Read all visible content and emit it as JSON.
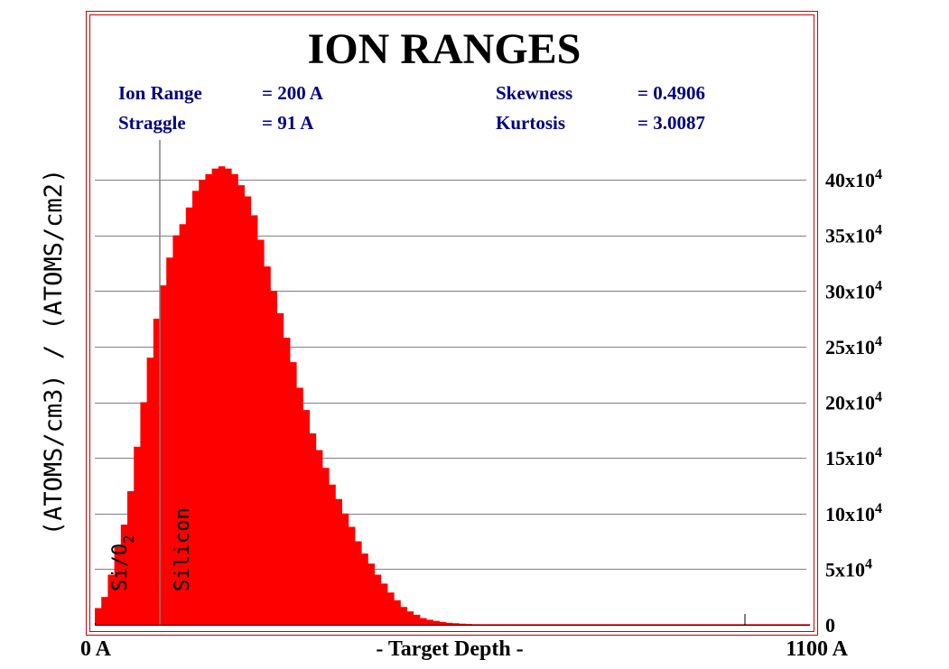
{
  "chart_data": {
    "type": "bar",
    "title": "ION RANGES",
    "stats": {
      "ion_range": {
        "label": "Ion Range",
        "value": "= 200 A"
      },
      "straggle": {
        "label": "Straggle",
        "value": "= 91 A"
      },
      "skewness": {
        "label": "Skewness",
        "value": "= 0.4906"
      },
      "kurtosis": {
        "label": "Kurtosis",
        "value": "= 3.0087"
      }
    },
    "xlabel": "- Target Depth -",
    "x_start_label": "0 A",
    "x_end_label": "1100 A",
    "x_unit": "A",
    "xlim": [
      0,
      1100
    ],
    "ylabel": "(ATOMS/cm3) / (ATOMS/cm2)",
    "ylim": [
      0,
      450000
    ],
    "y_ticks": [
      {
        "value": 0,
        "label": "0"
      },
      {
        "value": 50000,
        "mantissa": "5x10",
        "exp": "4"
      },
      {
        "value": 100000,
        "mantissa": "10x10",
        "exp": "4"
      },
      {
        "value": 150000,
        "mantissa": "15x10",
        "exp": "4"
      },
      {
        "value": 200000,
        "mantissa": "20x10",
        "exp": "4"
      },
      {
        "value": 250000,
        "mantissa": "25x10",
        "exp": "4"
      },
      {
        "value": 300000,
        "mantissa": "30x10",
        "exp": "4"
      },
      {
        "value": 350000,
        "mantissa": "35x10",
        "exp": "4"
      },
      {
        "value": 400000,
        "mantissa": "40x10",
        "exp": "4"
      }
    ],
    "grid": true,
    "layers": [
      {
        "label": "Si/O",
        "sub": "2",
        "from": 0,
        "to": 100
      },
      {
        "label": "Silicon",
        "from": 100,
        "to": 1100
      }
    ],
    "layer_boundary": 100,
    "series": [
      {
        "bin_width": 10,
        "x": [
          5,
          15,
          25,
          35,
          45,
          55,
          65,
          75,
          85,
          95,
          105,
          115,
          125,
          135,
          145,
          155,
          165,
          175,
          185,
          195,
          205,
          215,
          225,
          235,
          245,
          255,
          265,
          275,
          285,
          295,
          305,
          315,
          325,
          335,
          345,
          355,
          365,
          375,
          385,
          395,
          405,
          415,
          425,
          435,
          445,
          455,
          465,
          475,
          485,
          495,
          505,
          515,
          525,
          535,
          545,
          555,
          565,
          575,
          585,
          595,
          605,
          615,
          625,
          635,
          645,
          655,
          665,
          675,
          685,
          695,
          705,
          715,
          725,
          735,
          745,
          755,
          765,
          775,
          785,
          795,
          805,
          815,
          825,
          835,
          845,
          855,
          865,
          875,
          885,
          895,
          905,
          915,
          925,
          935,
          945,
          955,
          965,
          975,
          985,
          995,
          1005,
          1015,
          1025,
          1035,
          1045,
          1055,
          1065,
          1075,
          1085,
          1095
        ],
        "values": [
          15000,
          25000,
          45000,
          70000,
          90000,
          120000,
          160000,
          200000,
          240000,
          275000,
          305000,
          330000,
          350000,
          360000,
          375000,
          390000,
          400000,
          405000,
          410000,
          412000,
          410000,
          405000,
          395000,
          385000,
          368000,
          346000,
          322000,
          300000,
          280000,
          258000,
          236000,
          213000,
          193000,
          172000,
          157000,
          141000,
          126000,
          113000,
          100000,
          88000,
          75000,
          64000,
          55000,
          45000,
          37000,
          29000,
          22000,
          16000,
          12000,
          9000,
          6000,
          4500,
          3500,
          2500,
          1800,
          1400,
          1000,
          700,
          500,
          350,
          250,
          200,
          150,
          100,
          80,
          60,
          50,
          40,
          30,
          20,
          15,
          10,
          8,
          6,
          5,
          4,
          3,
          2,
          1,
          1,
          1,
          1,
          1,
          1,
          1,
          1,
          1,
          1,
          1,
          1,
          1,
          1,
          1,
          1,
          1,
          1,
          1,
          1,
          1,
          1,
          1,
          1,
          1,
          1,
          1,
          1,
          1,
          1,
          1,
          1
        ]
      }
    ],
    "marker_x": 1000
  },
  "colors": {
    "bars": "#ff0000",
    "frame": "#cc0000",
    "stats_text": "#000080",
    "grid": "#808080",
    "boundary": "#808080",
    "text": "#000000"
  }
}
